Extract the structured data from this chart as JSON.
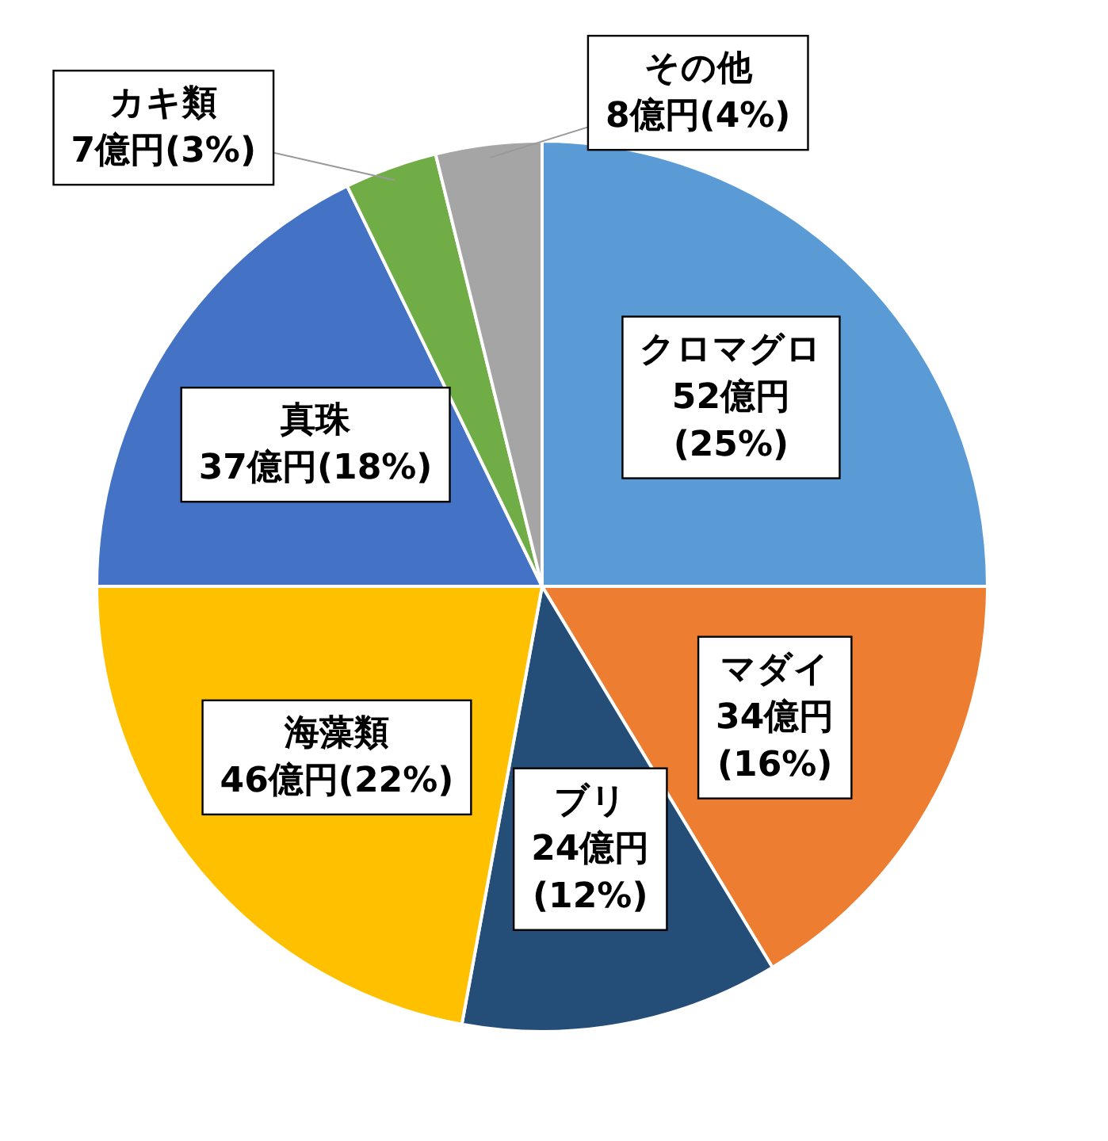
{
  "chart_data": {
    "type": "pie",
    "categories": [
      "クロマグロ",
      "マダイ",
      "ブリ",
      "海藻類",
      "真珠",
      "カキ類",
      "その他"
    ],
    "values": [
      52,
      34,
      24,
      46,
      37,
      7,
      8
    ],
    "value_labels": [
      "52億円\n(25%)",
      "34億円\n(16%)",
      "24億円\n(12%)",
      "46億円(22%)",
      "37億円(18%)",
      "7億円(3%)",
      "8億円(4%)"
    ],
    "colors": [
      "#5b9bd5",
      "#ed7d31",
      "#244e78",
      "#ffc000",
      "#4472c4",
      "#70ad47",
      "#a5a5a5"
    ]
  }
}
